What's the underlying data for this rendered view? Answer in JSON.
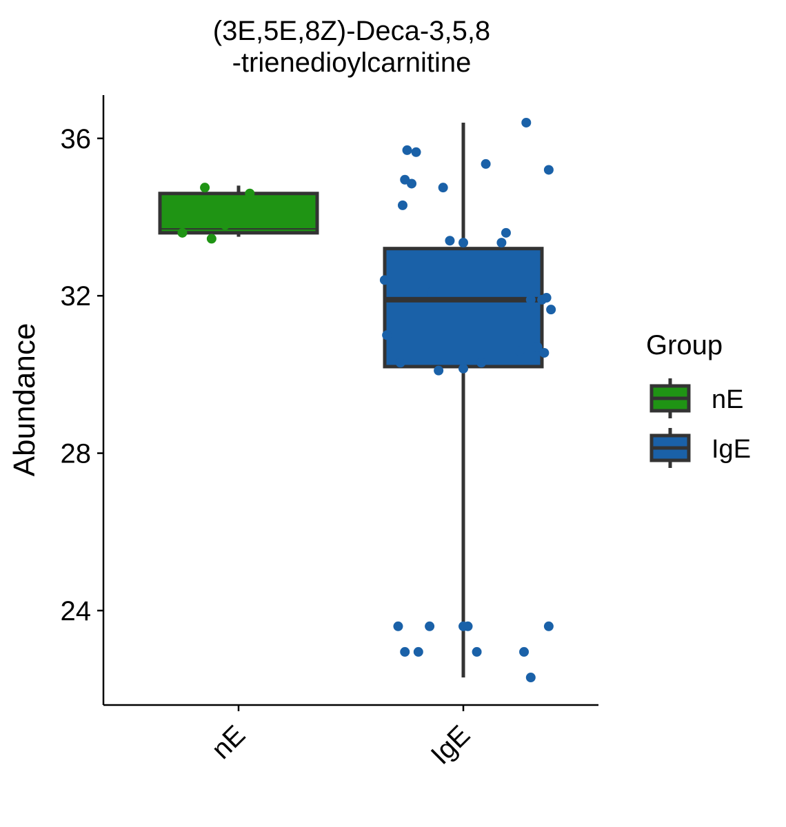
{
  "chart_data": {
    "type": "box",
    "title_line1": "(3E,5E,8Z)-Deca-3,5,8",
    "title_line2": "-trienedioylcarnitine",
    "xlabel": "",
    "ylabel": "Abundance",
    "ylim": [
      21.6,
      37.1
    ],
    "yticks": [
      24,
      28,
      32,
      36
    ],
    "categories": [
      "nE",
      "IgE"
    ],
    "legend": {
      "title": "Group",
      "position": "right"
    },
    "colors": {
      "nE": "#1f9414",
      "IgE": "#1a61a8",
      "outline": "#333333"
    },
    "boxes": [
      {
        "group": "nE",
        "whisker_low": 33.5,
        "q1": 33.6,
        "median": 33.7,
        "q3": 34.6,
        "whisker_high": 34.8
      },
      {
        "group": "IgE",
        "whisker_low": 22.3,
        "q1": 30.2,
        "median": 31.9,
        "q3": 33.2,
        "whisker_high": 36.4
      }
    ],
    "points": [
      {
        "group": "nE",
        "jitter": -0.25,
        "y": 33.6
      },
      {
        "group": "nE",
        "jitter": -0.15,
        "y": 34.75
      },
      {
        "group": "nE",
        "jitter": -0.12,
        "y": 33.45
      },
      {
        "group": "nE",
        "jitter": -0.06,
        "y": 33.8
      },
      {
        "group": "nE",
        "jitter": 0.05,
        "y": 34.6
      },
      {
        "group": "IgE",
        "jitter": -0.35,
        "y": 32.4
      },
      {
        "group": "IgE",
        "jitter": -0.34,
        "y": 31.0
      },
      {
        "group": "IgE",
        "jitter": -0.29,
        "y": 23.6
      },
      {
        "group": "IgE",
        "jitter": -0.28,
        "y": 30.3
      },
      {
        "group": "IgE",
        "jitter": -0.27,
        "y": 34.3
      },
      {
        "group": "IgE",
        "jitter": -0.26,
        "y": 34.95
      },
      {
        "group": "IgE",
        "jitter": -0.26,
        "y": 22.95
      },
      {
        "group": "IgE",
        "jitter": -0.25,
        "y": 35.7
      },
      {
        "group": "IgE",
        "jitter": -0.23,
        "y": 34.85
      },
      {
        "group": "IgE",
        "jitter": -0.21,
        "y": 35.65
      },
      {
        "group": "IgE",
        "jitter": -0.2,
        "y": 22.95
      },
      {
        "group": "IgE",
        "jitter": -0.15,
        "y": 23.6
      },
      {
        "group": "IgE",
        "jitter": -0.14,
        "y": 32.1
      },
      {
        "group": "IgE",
        "jitter": -0.11,
        "y": 30.1
      },
      {
        "group": "IgE",
        "jitter": -0.09,
        "y": 34.75
      },
      {
        "group": "IgE",
        "jitter": -0.06,
        "y": 33.4
      },
      {
        "group": "IgE",
        "jitter": 0.0,
        "y": 33.35
      },
      {
        "group": "IgE",
        "jitter": 0.0,
        "y": 23.6
      },
      {
        "group": "IgE",
        "jitter": 0.0,
        "y": 30.15
      },
      {
        "group": "IgE",
        "jitter": 0.02,
        "y": 23.6
      },
      {
        "group": "IgE",
        "jitter": 0.06,
        "y": 22.95
      },
      {
        "group": "IgE",
        "jitter": 0.08,
        "y": 30.3
      },
      {
        "group": "IgE",
        "jitter": 0.1,
        "y": 35.35
      },
      {
        "group": "IgE",
        "jitter": 0.17,
        "y": 33.35
      },
      {
        "group": "IgE",
        "jitter": 0.19,
        "y": 33.6
      },
      {
        "group": "IgE",
        "jitter": 0.25,
        "y": 30.6
      },
      {
        "group": "IgE",
        "jitter": 0.27,
        "y": 22.95
      },
      {
        "group": "IgE",
        "jitter": 0.28,
        "y": 36.4
      },
      {
        "group": "IgE",
        "jitter": 0.3,
        "y": 22.3
      },
      {
        "group": "IgE",
        "jitter": 0.3,
        "y": 31.9
      },
      {
        "group": "IgE",
        "jitter": 0.33,
        "y": 30.7
      },
      {
        "group": "IgE",
        "jitter": 0.35,
        "y": 31.9
      },
      {
        "group": "IgE",
        "jitter": 0.36,
        "y": 30.55
      },
      {
        "group": "IgE",
        "jitter": 0.37,
        "y": 31.95
      },
      {
        "group": "IgE",
        "jitter": 0.38,
        "y": 23.6
      },
      {
        "group": "IgE",
        "jitter": 0.38,
        "y": 35.2
      },
      {
        "group": "IgE",
        "jitter": 0.39,
        "y": 31.65
      }
    ]
  }
}
